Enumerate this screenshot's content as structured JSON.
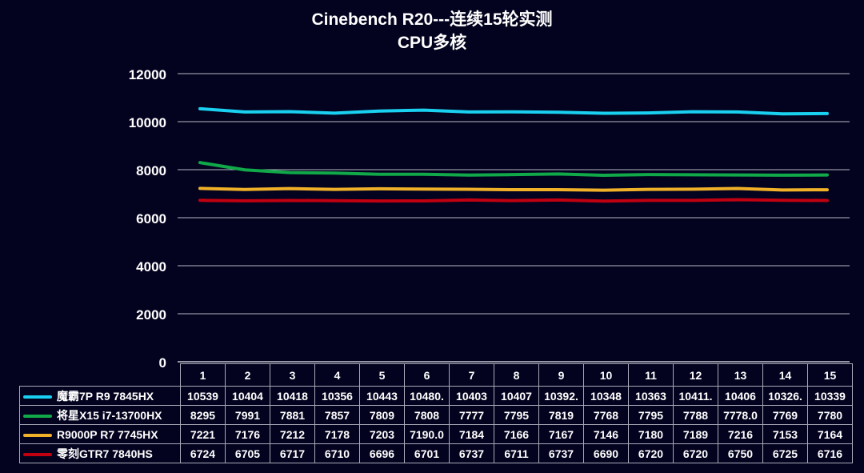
{
  "chart_data": {
    "type": "line",
    "title": "Cinebench R20---连续15轮实测",
    "subtitle": "CPU多核",
    "xlabel": "",
    "ylabel": "",
    "ylim": [
      0,
      12000
    ],
    "yticks": [
      "0",
      "2000",
      "4000",
      "6000",
      "8000",
      "10000",
      "12000"
    ],
    "grid": true,
    "legend_placement": "table-bottom",
    "categories": [
      "1",
      "2",
      "3",
      "4",
      "5",
      "6",
      "7",
      "8",
      "9",
      "10",
      "11",
      "12",
      "13",
      "14",
      "15"
    ],
    "series": [
      {
        "name": "魔霸7P R9 7845HX",
        "color": "#1ad0f0",
        "values": [
          10539,
          10404,
          10418,
          10356,
          10443,
          10480,
          10403,
          10407,
          10392,
          10348,
          10363,
          10411,
          10406,
          10326,
          10339
        ],
        "labels": [
          "10539",
          "10404",
          "10418",
          "10356",
          "10443",
          "10480.",
          "10403",
          "10407",
          "10392.",
          "10348",
          "10363",
          "10411.",
          "10406",
          "10326.",
          "10339"
        ]
      },
      {
        "name": "将星X15 i7-13700HX",
        "color": "#10a848",
        "values": [
          8295,
          7991,
          7881,
          7857,
          7809,
          7808,
          7777,
          7795,
          7819,
          7768,
          7795,
          7788,
          7778,
          7769,
          7780
        ],
        "labels": [
          "8295",
          "7991",
          "7881",
          "7857",
          "7809",
          "7808",
          "7777",
          "7795",
          "7819",
          "7768",
          "7795",
          "7788",
          "7778.0",
          "7769",
          "7780"
        ]
      },
      {
        "name": "R9000P R7 7745HX",
        "color": "#f0b028",
        "values": [
          7221,
          7176,
          7212,
          7178,
          7203,
          7190,
          7184,
          7166,
          7167,
          7146,
          7180,
          7189,
          7216,
          7153,
          7164
        ],
        "labels": [
          "7221",
          "7176",
          "7212",
          "7178",
          "7203",
          "7190.0",
          "7184",
          "7166",
          "7167",
          "7146",
          "7180",
          "7189",
          "7216",
          "7153",
          "7164"
        ]
      },
      {
        "name": "零刻GTR7 7840HS",
        "color": "#c00010",
        "values": [
          6724,
          6705,
          6717,
          6710,
          6696,
          6701,
          6737,
          6711,
          6737,
          6690,
          6720,
          6720,
          6750,
          6725,
          6716
        ],
        "labels": [
          "6724",
          "6705",
          "6717",
          "6710",
          "6696",
          "6701",
          "6737",
          "6711",
          "6737",
          "6690",
          "6720",
          "6720",
          "6750",
          "6725",
          "6716"
        ]
      }
    ]
  }
}
